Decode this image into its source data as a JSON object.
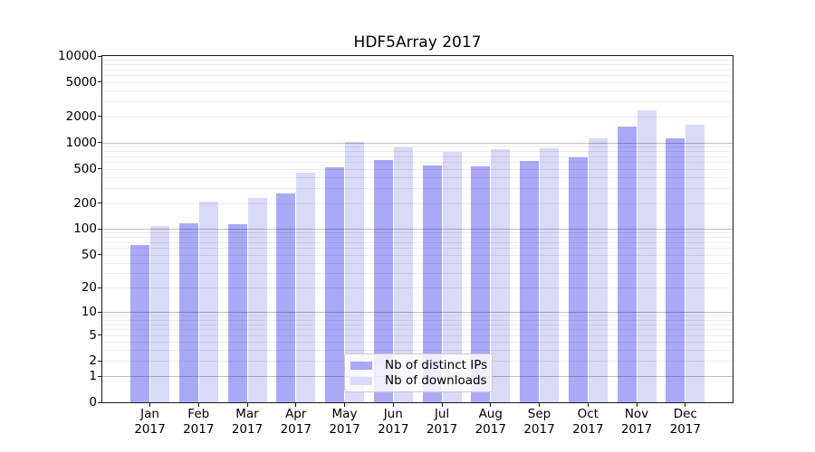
{
  "chart_data": {
    "type": "bar",
    "title": "HDF5Array 2017",
    "categories": [
      "Jan",
      "Feb",
      "Mar",
      "Apr",
      "May",
      "Jun",
      "Jul",
      "Aug",
      "Sep",
      "Oct",
      "Nov",
      "Dec"
    ],
    "x_sublabel": "2017",
    "series": [
      {
        "name": "Nb of distinct IPs",
        "color": "#a9a9f8",
        "values": [
          64,
          116,
          113,
          256,
          517,
          627,
          541,
          534,
          611,
          675,
          1519,
          1133
        ]
      },
      {
        "name": "Nb of downloads",
        "color": "#d9d9f8",
        "values": [
          107,
          209,
          231,
          447,
          1012,
          892,
          778,
          845,
          858,
          1133,
          2346,
          1624
        ]
      }
    ],
    "yticks": [
      0,
      1,
      2,
      5,
      10,
      20,
      50,
      100,
      200,
      500,
      1000,
      2000,
      5000,
      10000
    ],
    "scale": "log1p",
    "ylim": [
      0,
      10000
    ],
    "grid": {
      "horizontal": true,
      "minor_color": "#ececec",
      "major_decade_color": "#bfbfbf"
    },
    "frame_color": "#1a1a1a",
    "legend": {
      "position": "inside-lower-center",
      "entries": [
        "Nb of distinct IPs",
        "Nb of downloads"
      ]
    }
  }
}
